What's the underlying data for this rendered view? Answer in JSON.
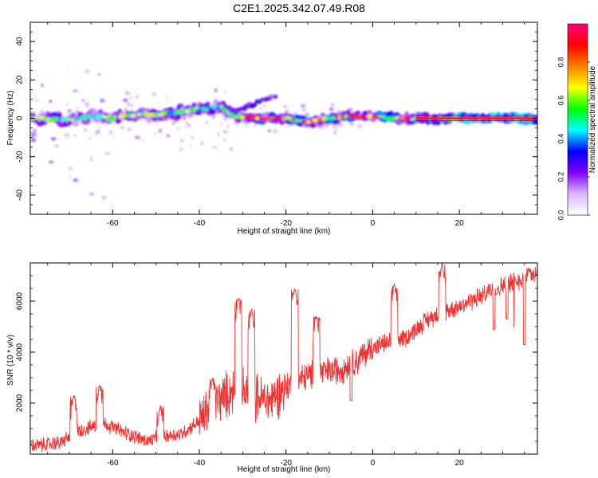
{
  "title": "C2E1.2025.342.07.49.R08",
  "chart_data": [
    {
      "type": "heatmap",
      "title": "C2E1.2025.342.07.49.R08",
      "xlabel": "Height of straight line (km)",
      "ylabel": "Frequency (Hz)",
      "xlim": [
        -79,
        38
      ],
      "ylim": [
        -50,
        50
      ],
      "xticks": [
        -60,
        -40,
        -20,
        0,
        20
      ],
      "xtick_labels": [
        "-60",
        "-40",
        "-20",
        "0",
        "20"
      ],
      "yticks": [
        -40,
        -20,
        0,
        20,
        40
      ],
      "ytick_labels": [
        "-40",
        "-20",
        "0",
        "20",
        "40"
      ],
      "colorbar": {
        "label": "Normalized spectral amplitude",
        "range": [
          0,
          1
        ],
        "ticks": [
          0.0,
          0.2,
          0.4,
          0.6,
          0.8
        ],
        "tick_labels": [
          "0.0",
          "0.2",
          "0.4",
          "0.6",
          "0.8"
        ],
        "colors": [
          "#ffffff",
          "#d8b8ff",
          "#8000ff",
          "#0000ff",
          "#00ffff",
          "#00ff00",
          "#ffff00",
          "#ff8000",
          "#ff0000",
          "#ff0080"
        ]
      },
      "ridge": [
        {
          "x": -79,
          "y": 0
        },
        {
          "x": -70,
          "y": -1
        },
        {
          "x": -65,
          "y": 1
        },
        {
          "x": -60,
          "y": 0
        },
        {
          "x": -55,
          "y": 2
        },
        {
          "x": -50,
          "y": 2
        },
        {
          "x": -45,
          "y": 3
        },
        {
          "x": -40,
          "y": 5
        },
        {
          "x": -35,
          "y": 6
        },
        {
          "x": -32,
          "y": 1
        },
        {
          "x": -26,
          "y": 0
        },
        {
          "x": -20,
          "y": 0
        },
        {
          "x": -15,
          "y": -2
        },
        {
          "x": -10,
          "y": 0
        },
        {
          "x": -5,
          "y": 1
        },
        {
          "x": 0,
          "y": 1
        },
        {
          "x": 5,
          "y": 0
        },
        {
          "x": 10,
          "y": 0
        },
        {
          "x": 15,
          "y": 0
        },
        {
          "x": 20,
          "y": 0
        },
        {
          "x": 30,
          "y": 0
        },
        {
          "x": 38,
          "y": 0
        }
      ],
      "branch": [
        {
          "x": -32,
          "y": 4
        },
        {
          "x": -28,
          "y": 7
        },
        {
          "x": -25,
          "y": 10
        },
        {
          "x": -22,
          "y": 11
        }
      ]
    },
    {
      "type": "line",
      "xlabel": "Height of straight line (km)",
      "ylabel": "SNR (10 * v/v)",
      "xlim": [
        -79,
        38
      ],
      "ylim": [
        0,
        7500
      ],
      "xticks": [
        -60,
        -40,
        -20,
        0,
        20
      ],
      "xtick_labels": [
        "-60",
        "-40",
        "-20",
        "0",
        "20"
      ],
      "yticks": [
        2000,
        4000,
        6000
      ],
      "ytick_labels": [
        "2000",
        "4000",
        "6000"
      ],
      "color": "#ee3333",
      "envelope": [
        {
          "x": -79,
          "y": 300
        },
        {
          "x": -72,
          "y": 450
        },
        {
          "x": -68,
          "y": 900
        },
        {
          "x": -62,
          "y": 1200
        },
        {
          "x": -58,
          "y": 900
        },
        {
          "x": -52,
          "y": 500
        },
        {
          "x": -48,
          "y": 700
        },
        {
          "x": -44,
          "y": 800
        },
        {
          "x": -40,
          "y": 1300
        },
        {
          "x": -36,
          "y": 2100
        },
        {
          "x": -32,
          "y": 2500
        },
        {
          "x": -28,
          "y": 2300
        },
        {
          "x": -24,
          "y": 2100
        },
        {
          "x": -20,
          "y": 2600
        },
        {
          "x": -16,
          "y": 3000
        },
        {
          "x": -12,
          "y": 3200
        },
        {
          "x": -8,
          "y": 3300
        },
        {
          "x": -4,
          "y": 3600
        },
        {
          "x": 0,
          "y": 4200
        },
        {
          "x": 4,
          "y": 4400
        },
        {
          "x": 8,
          "y": 4600
        },
        {
          "x": 12,
          "y": 5200
        },
        {
          "x": 16,
          "y": 5600
        },
        {
          "x": 20,
          "y": 5800
        },
        {
          "x": 25,
          "y": 6200
        },
        {
          "x": 30,
          "y": 6600
        },
        {
          "x": 35,
          "y": 6900
        },
        {
          "x": 38,
          "y": 7000
        }
      ],
      "peaks": [
        {
          "x": -69,
          "y": 2300
        },
        {
          "x": -63,
          "y": 2700
        },
        {
          "x": -49,
          "y": 1900
        },
        {
          "x": -37,
          "y": 3000
        },
        {
          "x": -31,
          "y": 6100
        },
        {
          "x": -28,
          "y": 5700
        },
        {
          "x": -18,
          "y": 6500
        },
        {
          "x": -13,
          "y": 5400
        },
        {
          "x": 5,
          "y": 6700
        },
        {
          "x": 16,
          "y": 7500
        },
        {
          "x": 36,
          "y": 7300
        }
      ],
      "dips": [
        {
          "x": 28,
          "y": 4900
        },
        {
          "x": 31,
          "y": 5300
        },
        {
          "x": 35,
          "y": 4300
        },
        {
          "x": -5,
          "y": 2100
        }
      ]
    }
  ]
}
